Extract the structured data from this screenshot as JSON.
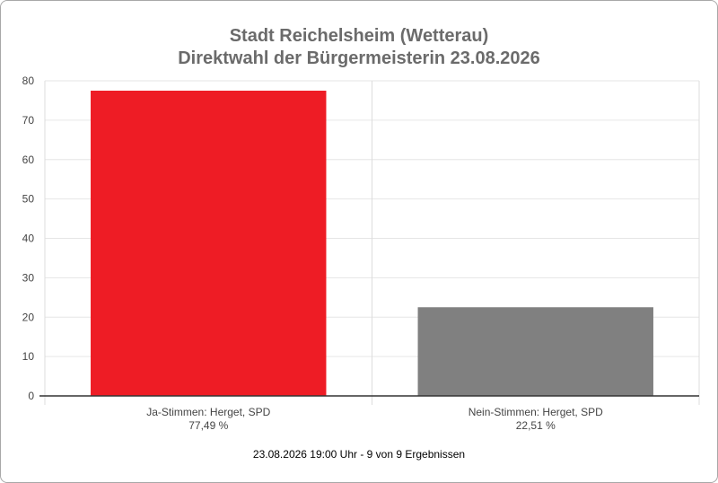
{
  "title_line1": "Stadt Reichelsheim (Wetterau)",
  "title_line2": "Direktwahl der Bürgermeisterin 23.08.2026",
  "footer": "23.08.2026 19:00 Uhr - 9 von 9 Ergebnissen",
  "chart_data": {
    "type": "bar",
    "title": "Stadt Reichelsheim (Wetterau) Direktwahl der Bürgermeisterin 23.08.2026",
    "categories": [
      "Ja-Stimmen: Herget, SPD",
      "Nein-Stimmen: Herget, SPD"
    ],
    "value_labels": [
      "77,49 %",
      "22,51 %"
    ],
    "values": [
      77.49,
      22.51
    ],
    "colors": [
      "#ee1c25",
      "#808080"
    ],
    "ylim": [
      0,
      80
    ],
    "yticks": [
      0,
      10,
      20,
      30,
      40,
      50,
      60,
      70,
      80
    ],
    "grid": true,
    "legend": "none"
  }
}
